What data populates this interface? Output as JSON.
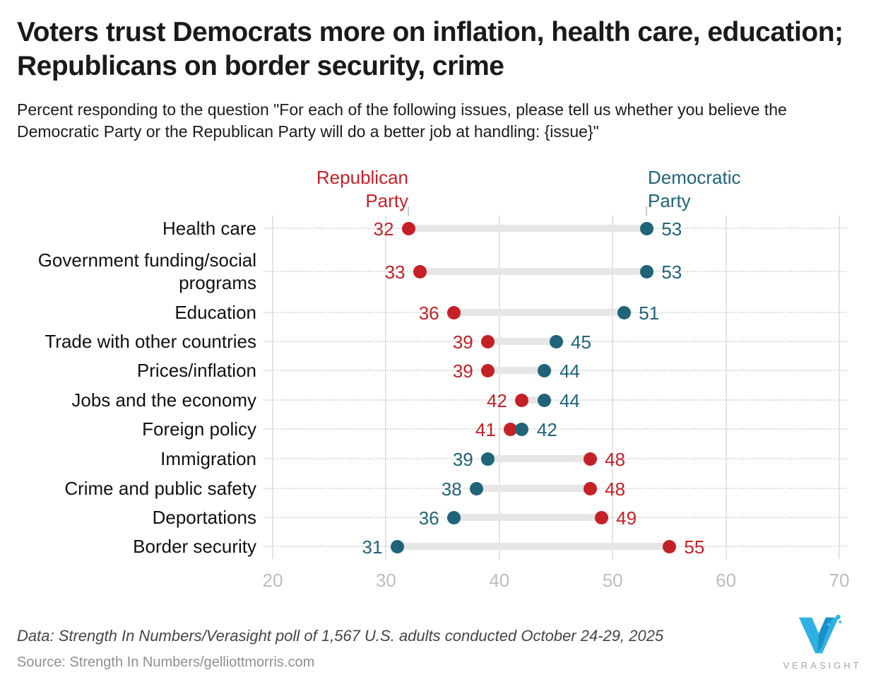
{
  "header": {
    "title": "Voters trust Democrats more on inflation, health care, education; Republicans on border security, crime",
    "subtitle": "Percent responding to the question \"For each of the following issues, please tell us whether you believe the Democratic Party or the Republican Party will do a better job at handling: {issue}\""
  },
  "chart_data": {
    "type": "dumbbell",
    "orientation": "horizontal",
    "x_axis": {
      "ticks": [
        20,
        30,
        40,
        50,
        60,
        70
      ],
      "range": [
        19,
        71
      ],
      "grid": true
    },
    "legend": {
      "republican": "Republican\nParty",
      "democratic": "Democratic\nParty",
      "position": "top, anchored to first-row dots"
    },
    "colors": {
      "republican": "#c42127",
      "democratic": "#1f6479",
      "connector_bar": "#e6e6e6",
      "gridline": "#e3e3e3",
      "leader_dots": "#d9d9d9",
      "axis_text": "#bdbdbd"
    },
    "rows": [
      {
        "issue": "Health care",
        "republican": 32,
        "democratic": 53
      },
      {
        "issue": "Government funding/social programs",
        "republican": 33,
        "democratic": 53
      },
      {
        "issue": "Education",
        "republican": 36,
        "democratic": 51
      },
      {
        "issue": "Trade with other countries",
        "republican": 39,
        "democratic": 45
      },
      {
        "issue": "Prices/inflation",
        "republican": 39,
        "democratic": 44
      },
      {
        "issue": "Jobs and the economy",
        "republican": 42,
        "democratic": 44
      },
      {
        "issue": "Foreign policy",
        "republican": 41,
        "democratic": 42
      },
      {
        "issue": "Immigration",
        "republican": 48,
        "democratic": 39
      },
      {
        "issue": "Crime and public safety",
        "republican": 48,
        "democratic": 38
      },
      {
        "issue": "Deportations",
        "republican": 49,
        "democratic": 36
      },
      {
        "issue": "Border security",
        "republican": 55,
        "democratic": 31
      }
    ]
  },
  "footer": {
    "data_note": "Data: Strength In Numbers/Verasight poll of 1,567 U.S. adults conducted October 24-29, 2025",
    "source_note": "Source: Strength In Numbers/gelliottmorris.com",
    "logo_text": "VERASIGHT"
  }
}
